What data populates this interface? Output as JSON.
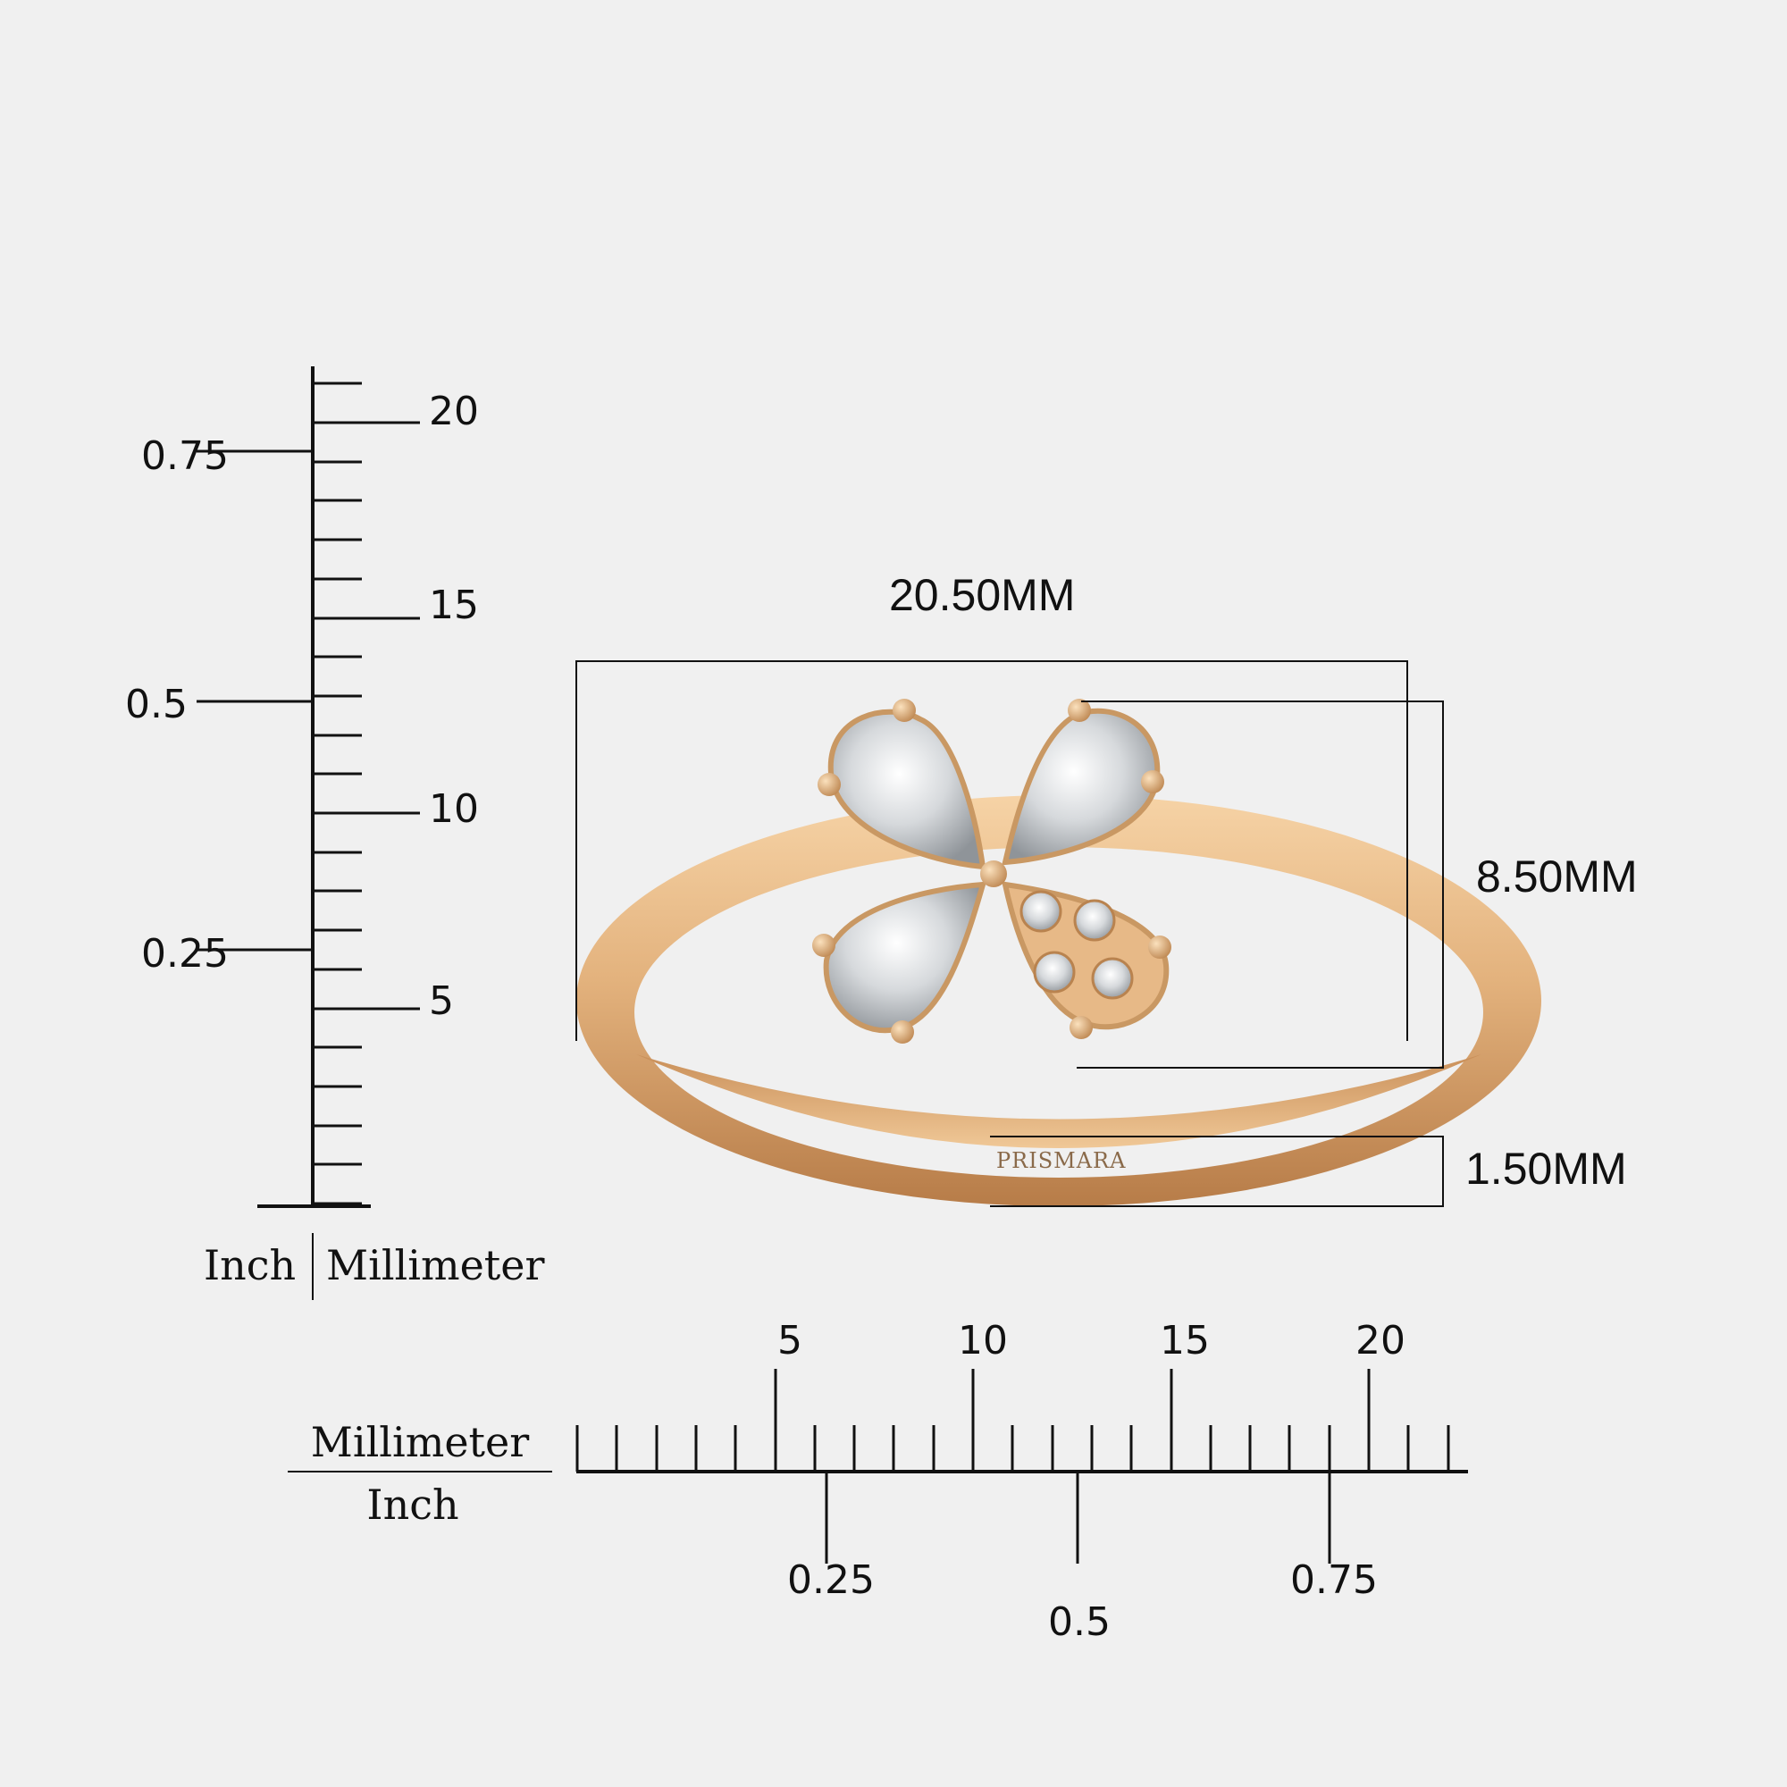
{
  "brand_engraving": "PRISMARA",
  "colors": {
    "background": "#f0f0f0",
    "gold": "#e0b27e",
    "gold_dark": "#b9834f",
    "diamond": "#d9dcdf",
    "ruler": "#111111"
  },
  "vertical_ruler": {
    "mm_labels": [
      "20",
      "15",
      "10",
      "5"
    ],
    "inch_labels": [
      "0.75",
      "0.5",
      "0.25"
    ],
    "unit_left": "Inch",
    "unit_right": "Millimeter"
  },
  "horizontal_ruler": {
    "mm_labels": [
      "5",
      "10",
      "15",
      "20"
    ],
    "inch_labels": [
      "0.25",
      "0.5",
      "0.75"
    ],
    "unit_top": "Millimeter",
    "unit_bottom": "Inch"
  },
  "dimensions": {
    "width": "20.50MM",
    "height": "8.50MM",
    "band": "1.50MM"
  }
}
